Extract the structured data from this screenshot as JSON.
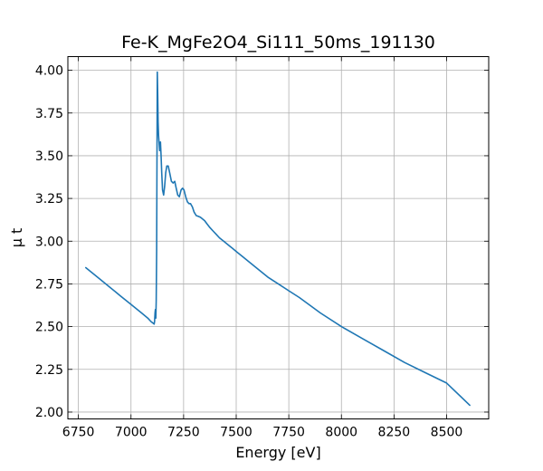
{
  "chart_data": {
    "type": "line",
    "title": "Fe-K_MgFe2O4_Si111_50ms_191130",
    "xlabel": "Energy [eV]",
    "ylabel": "μ t",
    "xlim": [
      6700,
      8700
    ],
    "ylim": [
      1.96,
      4.08
    ],
    "xticks": [
      6750,
      7000,
      7250,
      7500,
      7750,
      8000,
      8250,
      8500
    ],
    "xtick_labels": [
      "6750",
      "7000",
      "7250",
      "7500",
      "7750",
      "8000",
      "8250",
      "8500"
    ],
    "yticks": [
      2.0,
      2.25,
      2.5,
      2.75,
      3.0,
      3.25,
      3.5,
      3.75,
      4.0
    ],
    "ytick_labels": [
      "2.00",
      "2.25",
      "2.50",
      "2.75",
      "3.00",
      "3.25",
      "3.50",
      "3.75",
      "4.00"
    ],
    "grid": true,
    "ticks_direction": "in",
    "series": [
      {
        "color": "#1f77b4",
        "x": [
          6785,
          6850,
          6900,
          6950,
          7000,
          7050,
          7080,
          7095,
          7105,
          7110,
          7112,
          7114,
          7116,
          7118,
          7120,
          7122,
          7125,
          7127,
          7129,
          7131,
          7133,
          7136,
          7140,
          7143,
          7146,
          7150,
          7155,
          7160,
          7165,
          7170,
          7177,
          7184,
          7192,
          7200,
          7208,
          7215,
          7222,
          7230,
          7238,
          7245,
          7252,
          7260,
          7268,
          7276,
          7283,
          7292,
          7300,
          7310,
          7320,
          7330,
          7340,
          7350,
          7362,
          7375,
          7390,
          7405,
          7420,
          7440,
          7460,
          7480,
          7500,
          7530,
          7560,
          7600,
          7650,
          7700,
          7750,
          7800,
          7900,
          8000,
          8100,
          8200,
          8300,
          8400,
          8500,
          8610
        ],
        "y": [
          2.845,
          2.78,
          2.73,
          2.68,
          2.63,
          2.58,
          2.55,
          2.53,
          2.52,
          2.515,
          2.53,
          2.58,
          2.6,
          2.55,
          2.65,
          2.95,
          3.99,
          3.85,
          3.7,
          3.62,
          3.58,
          3.53,
          3.58,
          3.5,
          3.4,
          3.3,
          3.27,
          3.32,
          3.4,
          3.44,
          3.44,
          3.4,
          3.35,
          3.34,
          3.35,
          3.31,
          3.27,
          3.26,
          3.3,
          3.31,
          3.3,
          3.26,
          3.23,
          3.22,
          3.22,
          3.2,
          3.17,
          3.15,
          3.145,
          3.14,
          3.13,
          3.12,
          3.1,
          3.08,
          3.06,
          3.04,
          3.02,
          3.0,
          2.98,
          2.96,
          2.94,
          2.91,
          2.88,
          2.84,
          2.79,
          2.75,
          2.71,
          2.67,
          2.58,
          2.5,
          2.43,
          2.36,
          2.29,
          2.23,
          2.17,
          2.04
        ]
      }
    ]
  }
}
